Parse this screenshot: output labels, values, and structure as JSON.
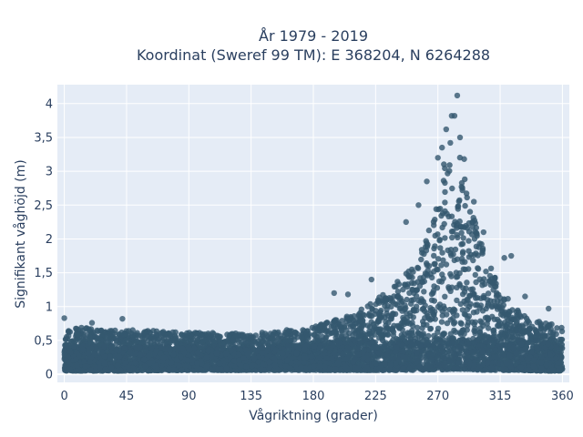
{
  "colors": {
    "marker": "#34586f",
    "plot_bg": "#e5ecf6",
    "grid": "#ffffff",
    "text": "#2a3f5f"
  },
  "chart_data": {
    "type": "scatter",
    "title": "År 1979 - 2019",
    "subtitle": "Koordinat (Sweref 99 TM): E 368204, N 6264288",
    "xlabel": "Vågriktning (grader)",
    "ylabel": "Signifikant våghöjd (m)",
    "xlim": [
      -5,
      365
    ],
    "ylim": [
      -0.12,
      4.28
    ],
    "xticks": [
      0,
      45,
      90,
      135,
      180,
      225,
      270,
      315,
      360
    ],
    "xtick_labels": [
      "0",
      "45",
      "90",
      "135",
      "180",
      "225",
      "270",
      "315",
      "360"
    ],
    "yticks": [
      0,
      0.5,
      1,
      1.5,
      2,
      2.5,
      3,
      3.5,
      4
    ],
    "ytick_labels": [
      "0",
      "0,5",
      "1",
      "1,5",
      "2",
      "2,5",
      "3",
      "3,5",
      "4"
    ],
    "grid": true,
    "legend": "none",
    "series": [
      {
        "envelope": {
          "x": [
            0,
            45,
            90,
            135,
            180,
            210,
            225,
            240,
            255,
            265,
            275,
            285,
            295,
            305,
            315,
            330,
            345,
            360
          ],
          "y_min": [
            0.05,
            0.05,
            0.06,
            0.06,
            0.06,
            0.06,
            0.06,
            0.06,
            0.06,
            0.07,
            0.07,
            0.07,
            0.07,
            0.06,
            0.06,
            0.06,
            0.05,
            0.05
          ],
          "y_max": [
            0.7,
            0.66,
            0.62,
            0.6,
            0.7,
            0.9,
            1.1,
            1.35,
            1.7,
            2.2,
            3.2,
            3.3,
            2.4,
            1.75,
            1.25,
            0.9,
            0.78,
            0.7
          ]
        },
        "outliers": [
          {
            "x": 0,
            "y": 0.83
          },
          {
            "x": 42,
            "y": 0.82
          },
          {
            "x": 20,
            "y": 0.76
          },
          {
            "x": 195,
            "y": 1.2
          },
          {
            "x": 205,
            "y": 1.18
          },
          {
            "x": 222,
            "y": 1.4
          },
          {
            "x": 247,
            "y": 2.25
          },
          {
            "x": 256,
            "y": 2.5
          },
          {
            "x": 262,
            "y": 2.85
          },
          {
            "x": 270,
            "y": 3.2
          },
          {
            "x": 273,
            "y": 3.35
          },
          {
            "x": 276,
            "y": 3.62
          },
          {
            "x": 279,
            "y": 3.42
          },
          {
            "x": 280,
            "y": 3.82
          },
          {
            "x": 282,
            "y": 3.82
          },
          {
            "x": 284,
            "y": 4.12
          },
          {
            "x": 286,
            "y": 3.5
          },
          {
            "x": 289,
            "y": 3.18
          },
          {
            "x": 296,
            "y": 2.55
          },
          {
            "x": 303,
            "y": 2.1
          },
          {
            "x": 318,
            "y": 1.72
          },
          {
            "x": 323,
            "y": 1.75
          },
          {
            "x": 333,
            "y": 1.15
          },
          {
            "x": 350,
            "y": 0.97
          }
        ]
      }
    ]
  }
}
